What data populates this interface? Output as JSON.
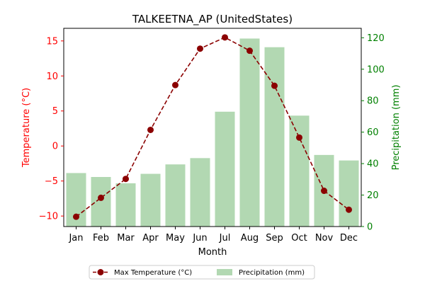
{
  "chart_data": {
    "type": "bar+line",
    "title": "TALKEETNA_AP (UnitedStates)",
    "xlabel": "Month",
    "ylabel_left": "Temperature (°C)",
    "ylabel_right": "Precipitation (mm)",
    "categories": [
      "Jan",
      "Feb",
      "Mar",
      "Apr",
      "May",
      "Jun",
      "Jul",
      "Aug",
      "Sep",
      "Oct",
      "Nov",
      "Dec"
    ],
    "series": [
      {
        "name": "Max Temperature (°C)",
        "type": "line",
        "axis": "left",
        "values": [
          -10.1,
          -7.4,
          -4.7,
          2.3,
          8.7,
          13.9,
          15.5,
          13.6,
          8.6,
          1.2,
          -6.4,
          -9.1
        ]
      },
      {
        "name": "Precipitation (mm)",
        "type": "bar",
        "axis": "right",
        "values": [
          34,
          31.5,
          27.5,
          33.5,
          39.5,
          43.5,
          73,
          119.5,
          114,
          70.5,
          45.5,
          42
        ]
      }
    ],
    "ylim_left": [
      -11.5,
      16.8
    ],
    "yticks_left": [
      -10,
      -5,
      0,
      5,
      10,
      15
    ],
    "ylim_right": [
      0,
      126
    ],
    "yticks_right": [
      0,
      20,
      40,
      60,
      80,
      100,
      120
    ],
    "grid": false,
    "legend_position": "bottom-center",
    "colors": {
      "temperature_line": "#8b0000",
      "temperature_axis": "#ff0000",
      "precip_bar": "#b2d8b2",
      "precip_axis": "#008000"
    }
  }
}
